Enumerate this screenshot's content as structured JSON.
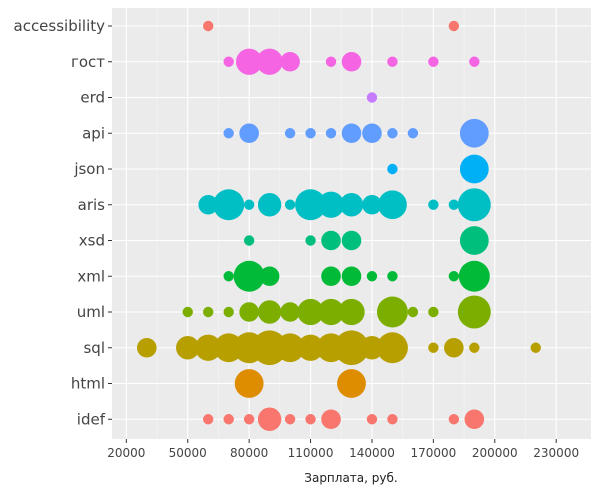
{
  "chart_data": {
    "type": "scatter",
    "xlabel": "Зарплата, руб.",
    "ylabel": "",
    "xlim": [
      13000,
      247000
    ],
    "x_ticks": [
      20000,
      50000,
      80000,
      110000,
      140000,
      170000,
      200000,
      230000
    ],
    "x_tick_labels": [
      "20000",
      "50000",
      "80000",
      "110000",
      "140000",
      "170000",
      "200000",
      "230000"
    ],
    "categories": [
      "accessibility",
      "гост",
      "erd",
      "api",
      "json",
      "aris",
      "xsd",
      "xml",
      "uml",
      "sql",
      "html",
      "idef"
    ],
    "grid": true,
    "legend": "none",
    "size_encoding": "number of vacancies (bubble area)",
    "series": [
      {
        "category": "accessibility",
        "color": "#F8766D",
        "points": [
          {
            "x": 60000,
            "size": 1
          },
          {
            "x": 180000,
            "size": 1
          }
        ]
      },
      {
        "category": "гост",
        "color": "#F564E3",
        "points": [
          {
            "x": 70000,
            "size": 1
          },
          {
            "x": 80000,
            "size": 4
          },
          {
            "x": 90000,
            "size": 4
          },
          {
            "x": 100000,
            "size": 2
          },
          {
            "x": 120000,
            "size": 1
          },
          {
            "x": 130000,
            "size": 2
          },
          {
            "x": 150000,
            "size": 1
          },
          {
            "x": 170000,
            "size": 1
          },
          {
            "x": 190000,
            "size": 1
          }
        ]
      },
      {
        "category": "erd",
        "color": "#C77CFF",
        "points": [
          {
            "x": 140000,
            "size": 1
          }
        ]
      },
      {
        "category": "api",
        "color": "#619CFF",
        "points": [
          {
            "x": 70000,
            "size": 1
          },
          {
            "x": 80000,
            "size": 2
          },
          {
            "x": 100000,
            "size": 1
          },
          {
            "x": 110000,
            "size": 1
          },
          {
            "x": 120000,
            "size": 1
          },
          {
            "x": 130000,
            "size": 2
          },
          {
            "x": 140000,
            "size": 2
          },
          {
            "x": 150000,
            "size": 1
          },
          {
            "x": 160000,
            "size": 1
          },
          {
            "x": 190000,
            "size": 5
          }
        ]
      },
      {
        "category": "json",
        "color": "#00B0F6",
        "points": [
          {
            "x": 150000,
            "size": 1
          },
          {
            "x": 190000,
            "size": 5
          }
        ]
      },
      {
        "category": "aris",
        "color": "#00BFC4",
        "points": [
          {
            "x": 60000,
            "size": 2
          },
          {
            "x": 70000,
            "size": 6
          },
          {
            "x": 80000,
            "size": 1
          },
          {
            "x": 90000,
            "size": 3
          },
          {
            "x": 100000,
            "size": 1
          },
          {
            "x": 110000,
            "size": 6
          },
          {
            "x": 120000,
            "size": 4
          },
          {
            "x": 130000,
            "size": 3
          },
          {
            "x": 140000,
            "size": 2
          },
          {
            "x": 150000,
            "size": 5
          },
          {
            "x": 170000,
            "size": 1
          },
          {
            "x": 180000,
            "size": 1
          },
          {
            "x": 190000,
            "size": 7
          }
        ]
      },
      {
        "category": "xsd",
        "color": "#00BF7D",
        "points": [
          {
            "x": 80000,
            "size": 1
          },
          {
            "x": 110000,
            "size": 1
          },
          {
            "x": 120000,
            "size": 2
          },
          {
            "x": 130000,
            "size": 2
          },
          {
            "x": 190000,
            "size": 5
          }
        ]
      },
      {
        "category": "xml",
        "color": "#00BA38",
        "points": [
          {
            "x": 70000,
            "size": 1
          },
          {
            "x": 80000,
            "size": 6
          },
          {
            "x": 90000,
            "size": 2
          },
          {
            "x": 120000,
            "size": 2
          },
          {
            "x": 130000,
            "size": 2
          },
          {
            "x": 140000,
            "size": 1
          },
          {
            "x": 150000,
            "size": 1
          },
          {
            "x": 180000,
            "size": 1
          },
          {
            "x": 190000,
            "size": 6
          }
        ]
      },
      {
        "category": "uml",
        "color": "#7CAE00",
        "points": [
          {
            "x": 50000,
            "size": 1
          },
          {
            "x": 60000,
            "size": 1
          },
          {
            "x": 70000,
            "size": 1
          },
          {
            "x": 80000,
            "size": 2
          },
          {
            "x": 90000,
            "size": 3
          },
          {
            "x": 100000,
            "size": 2
          },
          {
            "x": 110000,
            "size": 4
          },
          {
            "x": 120000,
            "size": 4
          },
          {
            "x": 130000,
            "size": 4
          },
          {
            "x": 150000,
            "size": 6
          },
          {
            "x": 160000,
            "size": 1
          },
          {
            "x": 170000,
            "size": 1
          },
          {
            "x": 190000,
            "size": 7
          }
        ]
      },
      {
        "category": "sql",
        "color": "#B79F00",
        "points": [
          {
            "x": 30000,
            "size": 2
          },
          {
            "x": 50000,
            "size": 3
          },
          {
            "x": 60000,
            "size": 4
          },
          {
            "x": 70000,
            "size": 5
          },
          {
            "x": 80000,
            "size": 6
          },
          {
            "x": 90000,
            "size": 8
          },
          {
            "x": 100000,
            "size": 5
          },
          {
            "x": 110000,
            "size": 4
          },
          {
            "x": 120000,
            "size": 5
          },
          {
            "x": 130000,
            "size": 8
          },
          {
            "x": 140000,
            "size": 3
          },
          {
            "x": 150000,
            "size": 6
          },
          {
            "x": 170000,
            "size": 1
          },
          {
            "x": 180000,
            "size": 2
          },
          {
            "x": 190000,
            "size": 1
          },
          {
            "x": 220000,
            "size": 1
          }
        ]
      },
      {
        "category": "html",
        "color": "#DE8C00",
        "points": [
          {
            "x": 80000,
            "size": 5
          },
          {
            "x": 130000,
            "size": 5
          }
        ]
      },
      {
        "category": "idef",
        "color": "#F8766D",
        "points": [
          {
            "x": 60000,
            "size": 1
          },
          {
            "x": 70000,
            "size": 1
          },
          {
            "x": 80000,
            "size": 1
          },
          {
            "x": 90000,
            "size": 3
          },
          {
            "x": 100000,
            "size": 1
          },
          {
            "x": 110000,
            "size": 1
          },
          {
            "x": 120000,
            "size": 2
          },
          {
            "x": 140000,
            "size": 1
          },
          {
            "x": 150000,
            "size": 1
          },
          {
            "x": 180000,
            "size": 1
          },
          {
            "x": 190000,
            "size": 2
          }
        ]
      }
    ]
  }
}
